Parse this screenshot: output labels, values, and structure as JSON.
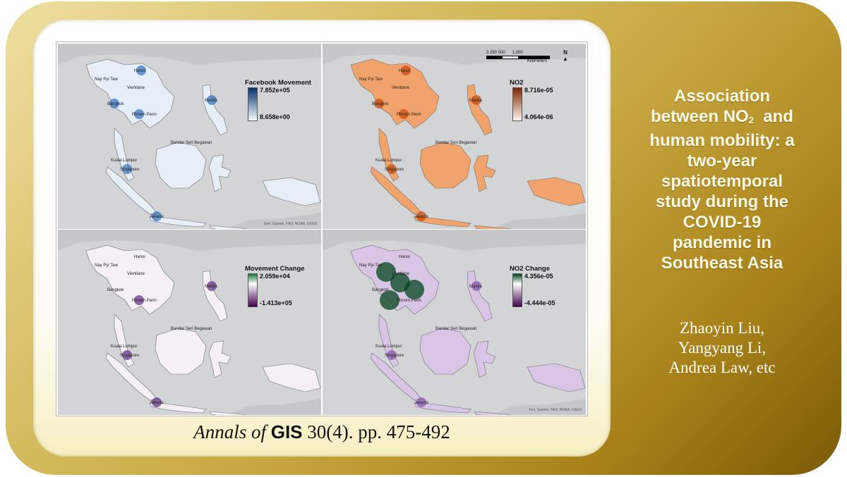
{
  "panels": [
    {
      "legend_title": "Facebook Movement",
      "legend_max": "7.852e+05",
      "legend_min": "8.658e+00",
      "color_high": "#08306b",
      "color_low": "#f7fbff",
      "fill": "#e6eef8",
      "accent": "#3a78c0",
      "attribution": "Esri, Garmin, FAO, NOAA, USGS"
    },
    {
      "legend_title": "NO2",
      "legend_max": "8.716e-05",
      "legend_min": "4.064e-06",
      "color_high": "#7f2704",
      "color_low": "#fff5eb",
      "fill": "#f2a36c",
      "accent": "#c94c10",
      "attribution": ""
    },
    {
      "legend_title": "Movement Change",
      "legend_max": "2.059e+04",
      "legend_min": "-1.413e+05",
      "color_high": "#1b7837",
      "color_low": "#40004b",
      "fill": "#f4f0f6",
      "accent": "#6a3a8c",
      "attribution": ""
    },
    {
      "legend_title": "NO2 Change",
      "legend_max": "4.356e-05",
      "legend_min": "-4.444e-05",
      "color_high": "#00441b",
      "color_low": "#40004b",
      "fill": "#d9c6e6",
      "accent": "#8a5aad",
      "attribution": "Esri, Garmin, FAO, NOAA, USGS"
    }
  ],
  "scalebar": {
    "ticks": "0 250 500      1,000",
    "unit": "Kilometers",
    "north": "N"
  },
  "cities": [
    "Hanoi",
    "Nay Pyi Taw",
    "Vientiane",
    "Bangkok",
    "Phnom Penh",
    "Manila",
    "Kuala Lumpur",
    "Singapore",
    "Bandar Seri Begawan",
    "Jakarta"
  ],
  "citation": {
    "journal_prefix": "Annals of",
    "journal_name": "GIS",
    "details": "30(4). pp. 475-492"
  },
  "title_lines": [
    "Association",
    "between NO",
    "2",
    "  and",
    "human mobility: a",
    "two-year",
    "spatiotemporal",
    "study during the",
    "COVID-19",
    "pandemic in",
    "Southeast Asia"
  ],
  "authors": [
    "Zhaoyin Liu,",
    "Yangyang Li,",
    "Andrea Law, etc"
  ]
}
